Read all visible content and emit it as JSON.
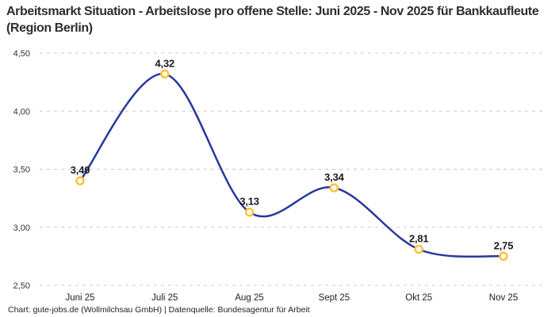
{
  "header": {
    "title": "Arbeitsmarkt Situation - Arbeitslose pro offene Stelle: Juni 2025 - Nov 2025 für Bankkaufleute (Region Berlin)"
  },
  "footer": {
    "attribution": "Chart: gute-jobs.de (Wollmilchsau GmbH) | Datenquelle: Bundesagentur für Arbeit"
  },
  "chart_data": {
    "type": "line",
    "title": "Arbeitsmarkt Situation - Arbeitslose pro offene Stelle: Juni 2025 - Nov 2025 für Bankkaufleute (Region Berlin)",
    "categories": [
      "Juni 25",
      "Juli 25",
      "Aug 25",
      "Sept 25",
      "Okt 25",
      "Nov 25"
    ],
    "values": [
      3.4,
      4.32,
      3.13,
      3.34,
      2.81,
      2.75
    ],
    "point_labels": [
      "3,40",
      "4,32",
      "3,13",
      "3,34",
      "2,81",
      "2,75"
    ],
    "y_ticks": {
      "values": [
        4.5,
        4.0,
        3.5,
        3.0,
        2.5
      ],
      "labels": [
        "4,50",
        "4,00",
        "3,50",
        "3,00",
        "2,50"
      ]
    },
    "xlabel": "",
    "ylabel": "",
    "ylim": [
      2.5,
      4.5
    ],
    "grid": "horizontal-dashed",
    "legend": "none",
    "smooth": true,
    "line_color": "#29389c",
    "marker_color": "#fbc33a",
    "marker_fill": "#ffffff",
    "grid_color": "#c9c9c9",
    "label_color": "#1a1a1a"
  }
}
